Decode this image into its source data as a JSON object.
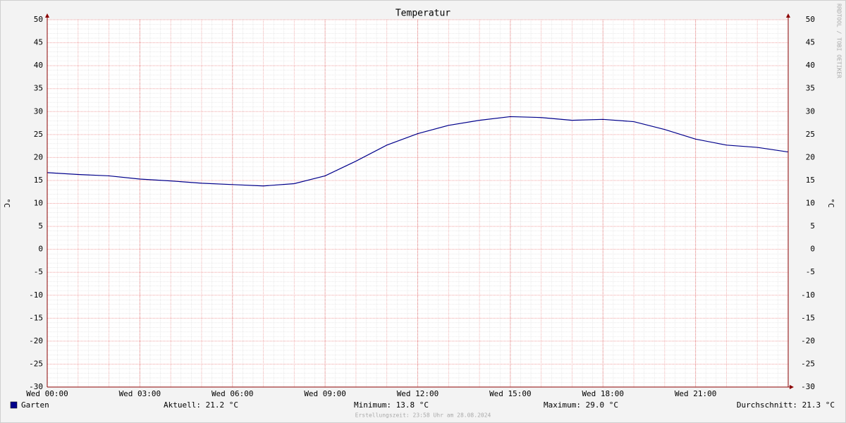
{
  "chart_data": {
    "type": "line",
    "title": "Temperatur",
    "ylabel": "°C",
    "y2label": "°C",
    "x": [
      0,
      1,
      2,
      3,
      4,
      5,
      6,
      7,
      8,
      9,
      10,
      11,
      12,
      13,
      14,
      15,
      16,
      17,
      18,
      19,
      20,
      21,
      22,
      23,
      24
    ],
    "xlim": [
      0,
      24
    ],
    "xticks": [
      {
        "value": 0,
        "label": "Wed 00:00"
      },
      {
        "value": 3,
        "label": "Wed 03:00"
      },
      {
        "value": 6,
        "label": "Wed 06:00"
      },
      {
        "value": 9,
        "label": "Wed 09:00"
      },
      {
        "value": 12,
        "label": "Wed 12:00"
      },
      {
        "value": 15,
        "label": "Wed 15:00"
      },
      {
        "value": 18,
        "label": "Wed 18:00"
      },
      {
        "value": 21,
        "label": "Wed 21:00"
      }
    ],
    "ylim": [
      -30,
      50
    ],
    "yticks": [
      -30,
      -25,
      -20,
      -15,
      -10,
      -5,
      0,
      5,
      10,
      15,
      20,
      25,
      30,
      35,
      40,
      45,
      50
    ],
    "grid": true,
    "series": [
      {
        "name": "Garten",
        "color": "#00008b",
        "values": [
          16.7,
          16.3,
          16.0,
          15.3,
          14.9,
          14.4,
          14.1,
          13.8,
          14.3,
          16.0,
          19.2,
          22.7,
          25.2,
          27.0,
          28.1,
          28.9,
          28.7,
          28.1,
          28.3,
          27.8,
          26.1,
          24.0,
          22.7,
          22.2,
          21.2
        ]
      }
    ],
    "stats": [
      "Aktuell: 21.2 °C",
      "Minimum: 13.8 °C",
      "Maximum: 29.0 °C",
      "Durchschnitt: 21.3 °C"
    ],
    "footer": "Erstellungszeit: 23:58 Uhr am 28.08.2024",
    "watermark": "RRDTOOL / TOBI OETIKER"
  }
}
